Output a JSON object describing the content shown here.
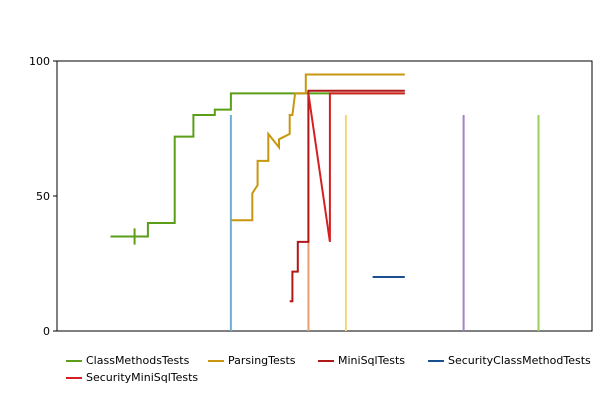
{
  "chart_data": {
    "type": "line",
    "title": "",
    "xlabel": "",
    "ylabel": "",
    "ylim": [
      0,
      100
    ],
    "yticks": [
      0,
      50,
      100
    ],
    "x_range": [
      0,
      100
    ],
    "grid": false,
    "legend_position": "bottom",
    "series": [
      {
        "name": "ClassMethodsTests",
        "color": "#5a9e1a",
        "points": [
          [
            10,
            35
          ],
          [
            17,
            35
          ],
          [
            17,
            40
          ],
          [
            22,
            40
          ],
          [
            22,
            72
          ],
          [
            25.5,
            72
          ],
          [
            25.5,
            80
          ],
          [
            29.5,
            80
          ],
          [
            29.5,
            82
          ],
          [
            32.5,
            82
          ],
          [
            32.5,
            88
          ],
          [
            65,
            88
          ]
        ]
      },
      {
        "name": "ParsingTests",
        "color": "#c8960f",
        "points": [
          [
            32.5,
            41
          ],
          [
            36.5,
            41
          ],
          [
            36.5,
            51
          ],
          [
            37.5,
            54
          ],
          [
            37.5,
            63
          ],
          [
            39.5,
            63
          ],
          [
            39.5,
            73
          ],
          [
            41.5,
            68
          ],
          [
            41.5,
            71
          ],
          [
            43.5,
            73
          ],
          [
            43.5,
            80
          ],
          [
            44,
            80
          ],
          [
            44.5,
            88
          ],
          [
            46.5,
            88
          ],
          [
            46.5,
            95
          ],
          [
            65,
            95
          ]
        ]
      },
      {
        "name": "MiniSqlTests",
        "color": "#b01818",
        "points": [
          [
            43.5,
            11
          ],
          [
            44,
            11
          ],
          [
            44,
            22
          ],
          [
            45,
            22
          ],
          [
            45,
            33
          ],
          [
            47,
            33
          ],
          [
            47,
            89
          ],
          [
            65,
            89
          ]
        ]
      },
      {
        "name": "SecurityClassMethodTests",
        "color": "#1a4f8f",
        "points": [
          [
            59,
            20
          ],
          [
            65,
            20
          ]
        ]
      },
      {
        "name": "SecurityMiniSqlTests",
        "color": "#d42020",
        "points": [
          [
            47,
            88
          ],
          [
            51,
            33
          ],
          [
            51,
            88
          ],
          [
            65,
            88
          ]
        ]
      }
    ],
    "markers": [
      {
        "color": "#5a9e1a",
        "x": 14.5,
        "y": [
          32,
          38
        ]
      }
    ],
    "reference_lines": [
      {
        "x": 32.5,
        "y": [
          0,
          80
        ],
        "color": "#6baed6"
      },
      {
        "x": 47,
        "y": [
          0,
          88
        ],
        "color": "#e8a070"
      },
      {
        "x": 54,
        "y": [
          0,
          80
        ],
        "color": "#f5d57a"
      },
      {
        "x": 76,
        "y": [
          0,
          80
        ],
        "color": "#a57fc7"
      },
      {
        "x": 90,
        "y": [
          0,
          80
        ],
        "color": "#9acd5a"
      }
    ]
  }
}
